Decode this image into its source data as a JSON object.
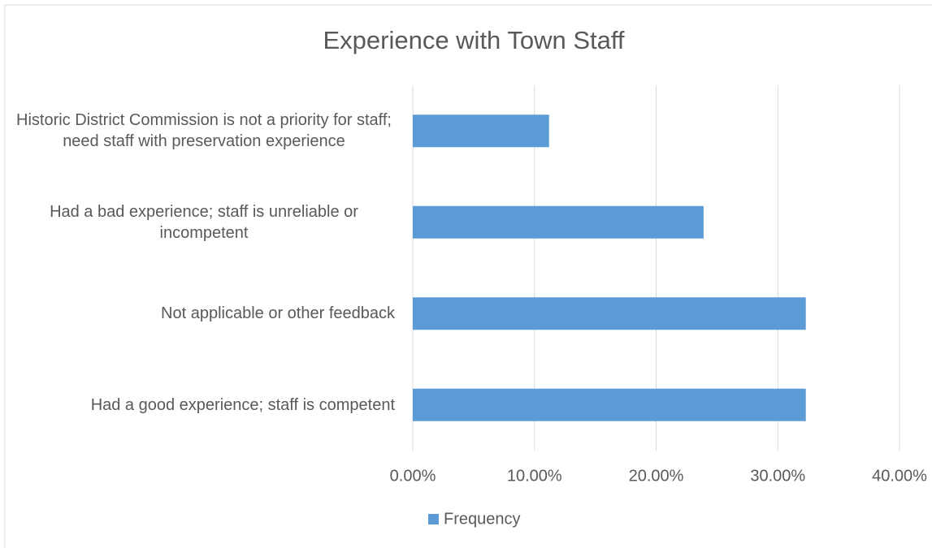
{
  "chart_data": {
    "type": "bar",
    "orientation": "horizontal",
    "title": "Experience with Town Staff",
    "categories": [
      "Historic District Commission is not a priority for staff; need staff with preservation experience",
      "Had a bad experience; staff is unreliable or incompetent",
      "Not applicable or other feedback",
      "Had a good experience; staff is competent"
    ],
    "series": [
      {
        "name": "Frequency",
        "color": "#5b9bd5",
        "values": [
          11.2,
          23.9,
          32.3,
          32.3
        ]
      }
    ],
    "xlim": [
      0,
      40
    ],
    "xticks": [
      {
        "value": 0,
        "label": "0.00%"
      },
      {
        "value": 10,
        "label": "10.00%"
      },
      {
        "value": 20,
        "label": "20.00%"
      },
      {
        "value": 30,
        "label": "30.00%"
      },
      {
        "value": 40,
        "label": "40.00%"
      }
    ],
    "grid": true,
    "legend": "bottom"
  }
}
